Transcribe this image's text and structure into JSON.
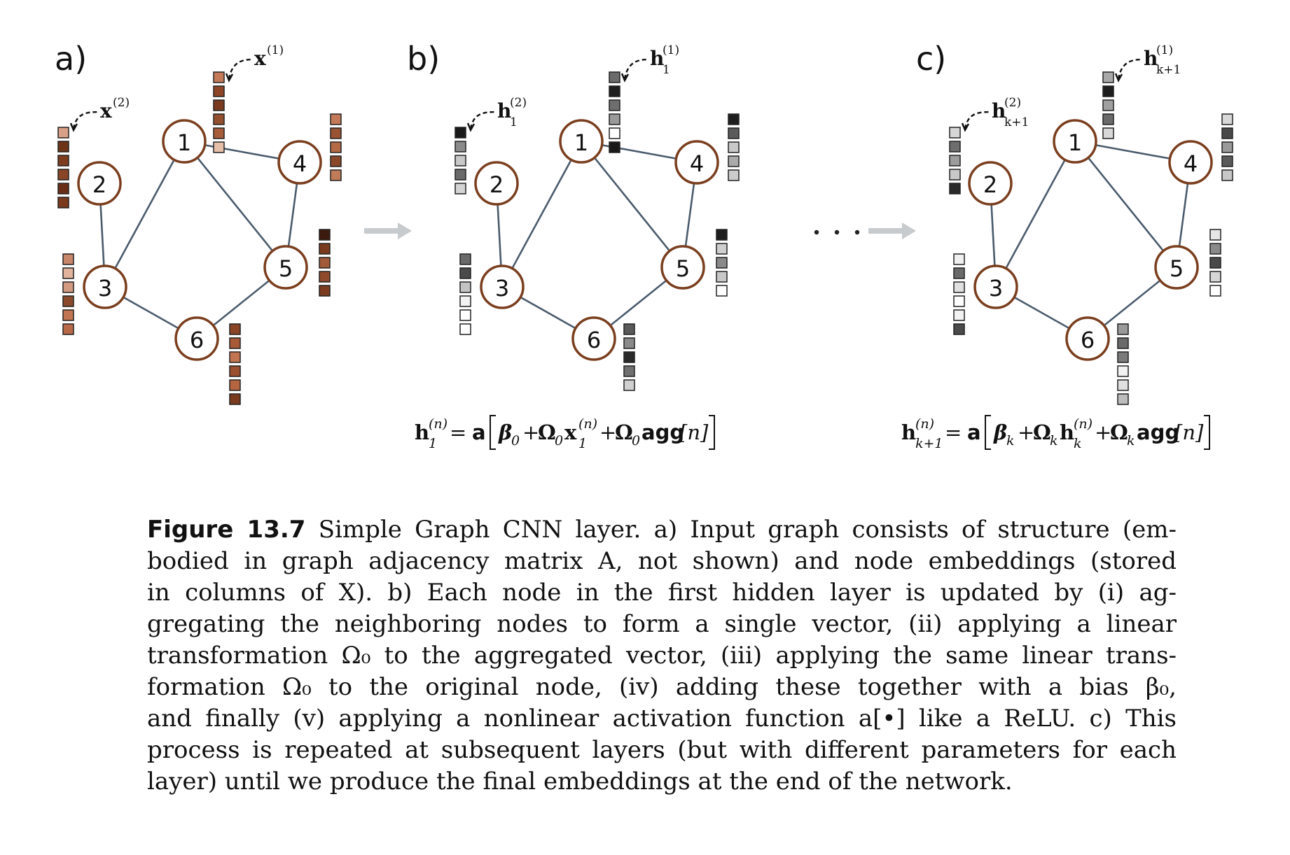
{
  "panels": [
    {
      "id": "a",
      "label": "a)",
      "palette": "brown",
      "annotations": {
        "top": {
          "base": "x",
          "sup": "(1)",
          "sub": ""
        },
        "side": {
          "base": "x",
          "sup": "(2)",
          "sub": ""
        }
      },
      "arrow_before": false,
      "ellipsis_before": false
    },
    {
      "id": "b",
      "label": "b)",
      "palette": "gray",
      "annotations": {
        "top": {
          "base": "h",
          "sup": "(1)",
          "sub": "1"
        },
        "side": {
          "base": "h",
          "sup": "(2)",
          "sub": "1"
        }
      },
      "arrow_before": true,
      "ellipsis_before": false
    },
    {
      "id": "c",
      "label": "c)",
      "palette": "gray",
      "annotations": {
        "top": {
          "base": "h",
          "sup": "(1)",
          "sub": "k+1"
        },
        "side": {
          "base": "h",
          "sup": "(2)",
          "sub": "k+1"
        }
      },
      "arrow_before": true,
      "ellipsis_before": true
    }
  ],
  "graph": {
    "nodes": [
      "1",
      "2",
      "3",
      "4",
      "5",
      "6"
    ],
    "edges": [
      [
        "1",
        "4"
      ],
      [
        "1",
        "3"
      ],
      [
        "1",
        "5"
      ],
      [
        "2",
        "3"
      ],
      [
        "3",
        "6"
      ],
      [
        "6",
        "5"
      ],
      [
        "4",
        "5"
      ]
    ]
  },
  "embeddings": {
    "a": {
      "1": [
        "#c47a58",
        "#8e4527",
        "#7a3a20",
        "#94502e",
        "#a85d3b",
        "#e6bfa8"
      ],
      "2": [
        "#d9a088",
        "#6e3418",
        "#7d3c20",
        "#8a4526",
        "#6a2e16",
        "#7b3a1d"
      ],
      "3": [
        "#c8866a",
        "#e2b49c",
        "#d29a80",
        "#8c4a2c",
        "#c27552",
        "#b86a48"
      ],
      "4": [
        "#c47a58",
        "#9a5332",
        "#b56a46",
        "#8a4829",
        "#c07b58"
      ],
      "5": [
        "#3d1a0e",
        "#7a3a1e",
        "#a35a38",
        "#8e4a2a",
        "#7c3c20"
      ],
      "6": [
        "#8a4426",
        "#a85a36",
        "#c27550",
        "#9a4f2e",
        "#b56540",
        "#7a3a1e"
      ]
    },
    "b": {
      "1": [
        "#6b6b6b",
        "#1e1e1e",
        "#6e6e6e",
        "#9a9a9a",
        "#ffffff",
        "#1a1a1a"
      ],
      "2": [
        "#1a1a1a",
        "#8a8a8a",
        "#c8c8c8",
        "#6a6a6a",
        "#d4d4d4"
      ],
      "3": [
        "#6a6a6a",
        "#4a4a4a",
        "#c4c4c4",
        "#f2f2f2",
        "#ffffff",
        "#ffffff"
      ],
      "4": [
        "#1e1e1e",
        "#5a5a5a",
        "#c8c8c8",
        "#aaaaaa",
        "#cccccc"
      ],
      "5": [
        "#1e1e1e",
        "#cfcfcf",
        "#8a8a8a",
        "#c8c8c8",
        "#ffffff"
      ],
      "6": [
        "#5a5a5a",
        "#8a8a8a",
        "#2a2a2a",
        "#707070",
        "#d0d0d0"
      ]
    },
    "c": {
      "1": [
        "#a8a8a8",
        "#1e1e1e",
        "#a0a0a0",
        "#6a6a6a",
        "#d8d8d8"
      ],
      "2": [
        "#d6d6d6",
        "#6e6e6e",
        "#9c9c9c",
        "#c8c8c8",
        "#2a2a2a"
      ],
      "3": [
        "#f0f0f0",
        "#6a6a6a",
        "#e0e0e0",
        "#ffffff",
        "#f2f2f2",
        "#4a4a4a"
      ],
      "4": [
        "#d8d8d8",
        "#4a4a4a",
        "#9a9a9a",
        "#5a5a5a",
        "#c8c8c8"
      ],
      "5": [
        "#e6e6e6",
        "#8a8a8a",
        "#4a4a4a",
        "#d6d6d6",
        "#ffffff"
      ],
      "6": [
        "#9a9a9a",
        "#6a6a6a",
        "#7a7a7a",
        "#f2f2f2",
        "#e0e0e0",
        "#bcbcbc"
      ]
    }
  },
  "equations": {
    "b": {
      "lhs_base": "h",
      "lhs_sub": "1",
      "lhs_sup": "(n)",
      "eq": "=",
      "act": "a",
      "bias": "β",
      "bias_sub": "0",
      "w1": "Ω",
      "w1_sub": "0",
      "v_base": "x",
      "v_sub": "1",
      "v_sup": "(n)",
      "w2": "Ω",
      "w2_sub": "0",
      "agg": "agg",
      "agg_arg": "[n]",
      "plus": "+"
    },
    "c": {
      "lhs_base": "h",
      "lhs_sub": "k+1",
      "lhs_sup": "(n)",
      "eq": "=",
      "act": "a",
      "bias": "β",
      "bias_sub": "k",
      "w1": "Ω",
      "w1_sub": "k",
      "v_base": "h",
      "v_sub": "k",
      "v_sup": "(n)",
      "w2": "Ω",
      "w2_sub": "k",
      "agg": "agg",
      "agg_arg": "[n]",
      "plus": "+"
    }
  },
  "ellipsis": "· · ·",
  "caption": {
    "label": "Figure 13.7",
    "lines": [
      " Simple Graph CNN layer. a) Input graph consists of structure (em-",
      "bodied in graph adjacency matrix A, not shown) and node embeddings (stored",
      "in columns of X).  b) Each node in the first hidden layer is updated by (i) ag-",
      "gregating the neighboring nodes to form a single vector, (ii) applying a linear",
      "transformation Ω₀ to the aggregated vector, (iii) applying the same linear trans-",
      "formation Ω₀ to the original node, (iv) adding these together with a bias β₀,",
      "and finally (v) applying a nonlinear activation function a[•] like a ReLU. c) This",
      "process is repeated at subsequent layers (but with different parameters for each",
      "layer) until we produce the final embeddings at the end of the network."
    ]
  }
}
